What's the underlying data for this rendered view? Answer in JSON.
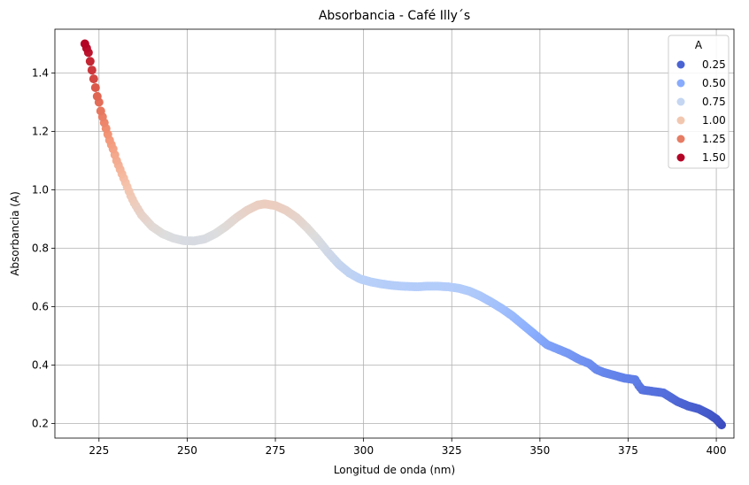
{
  "chart_data": {
    "type": "scatter",
    "title": "Absorbancia - Café Illy´s",
    "xlabel": "Longitud de onda (nm)",
    "ylabel": "Absorbancia (A)",
    "xlim": [
      212.5,
      405
    ],
    "ylim": [
      0.15,
      1.55
    ],
    "xticks": [
      225,
      250,
      275,
      300,
      325,
      350,
      375,
      400
    ],
    "xtick_labels": [
      "225",
      "250",
      "275",
      "300",
      "325",
      "350",
      "375",
      "400"
    ],
    "yticks": [
      0.2,
      0.4,
      0.6,
      0.8,
      1.0,
      1.2,
      1.4
    ],
    "ytick_labels": [
      "0.2",
      "0.4",
      "0.6",
      "0.8",
      "1.0",
      "1.2",
      "1.4"
    ],
    "grid": true,
    "colormap": "coolwarm",
    "color_range": [
      0.2,
      1.5
    ],
    "legend": {
      "title": "A",
      "position": "top-right",
      "entries": [
        {
          "label": "0.25",
          "value": 0.25,
          "color": "#4a63d3"
        },
        {
          "label": "0.50",
          "value": 0.5,
          "color": "#88abfd"
        },
        {
          "label": "0.75",
          "value": 0.75,
          "color": "#c5d6f2"
        },
        {
          "label": "1.00",
          "value": 1.0,
          "color": "#f2c7b0"
        },
        {
          "label": "1.25",
          "value": 1.25,
          "color": "#e67c64"
        },
        {
          "label": "1.50",
          "value": 1.5,
          "color": "#b40426"
        }
      ]
    },
    "curve_points": [
      [
        221,
        1.5
      ],
      [
        222,
        1.47
      ],
      [
        222.5,
        1.44
      ],
      [
        223,
        1.41
      ],
      [
        223.5,
        1.38
      ],
      [
        224,
        1.35
      ],
      [
        224.5,
        1.32
      ],
      [
        225,
        1.3
      ],
      [
        225.5,
        1.27
      ],
      [
        226,
        1.25
      ],
      [
        226.5,
        1.23
      ],
      [
        227,
        1.21
      ],
      [
        227.5,
        1.19
      ],
      [
        228,
        1.17
      ],
      [
        229,
        1.14
      ],
      [
        230,
        1.1
      ],
      [
        231,
        1.07
      ],
      [
        232,
        1.04
      ],
      [
        233,
        1.01
      ],
      [
        234,
        0.98
      ],
      [
        235,
        0.955
      ],
      [
        237,
        0.915
      ],
      [
        240,
        0.875
      ],
      [
        243,
        0.85
      ],
      [
        246,
        0.835
      ],
      [
        249,
        0.826
      ],
      [
        252,
        0.825
      ],
      [
        255,
        0.832
      ],
      [
        258,
        0.85
      ],
      [
        261,
        0.875
      ],
      [
        264,
        0.905
      ],
      [
        267,
        0.93
      ],
      [
        270,
        0.948
      ],
      [
        272,
        0.952
      ],
      [
        275,
        0.946
      ],
      [
        278,
        0.93
      ],
      [
        281,
        0.905
      ],
      [
        284,
        0.87
      ],
      [
        287,
        0.83
      ],
      [
        290,
        0.785
      ],
      [
        293,
        0.745
      ],
      [
        296,
        0.715
      ],
      [
        299,
        0.695
      ],
      [
        302,
        0.685
      ],
      [
        305,
        0.678
      ],
      [
        308,
        0.673
      ],
      [
        311,
        0.67
      ],
      [
        315,
        0.668
      ],
      [
        318,
        0.67
      ],
      [
        321,
        0.67
      ],
      [
        324,
        0.668
      ],
      [
        327,
        0.663
      ],
      [
        330,
        0.653
      ],
      [
        333,
        0.637
      ],
      [
        336,
        0.617
      ],
      [
        339,
        0.595
      ],
      [
        342,
        0.57
      ],
      [
        345,
        0.54
      ],
      [
        348,
        0.51
      ],
      [
        350,
        0.49
      ],
      [
        352,
        0.47
      ],
      [
        355,
        0.455
      ],
      [
        358,
        0.44
      ],
      [
        361,
        0.42
      ],
      [
        364,
        0.405
      ],
      [
        366,
        0.385
      ],
      [
        368,
        0.375
      ],
      [
        371,
        0.365
      ],
      [
        374,
        0.355
      ],
      [
        377,
        0.35
      ],
      [
        378,
        0.33
      ],
      [
        379,
        0.315
      ],
      [
        382,
        0.31
      ],
      [
        385,
        0.305
      ],
      [
        387,
        0.29
      ],
      [
        389,
        0.275
      ],
      [
        392,
        0.26
      ],
      [
        395,
        0.25
      ],
      [
        398,
        0.232
      ],
      [
        400,
        0.215
      ],
      [
        401.5,
        0.195
      ]
    ]
  }
}
